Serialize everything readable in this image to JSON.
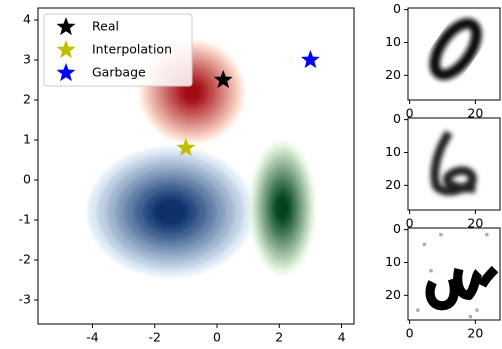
{
  "chart_data": [
    {
      "type": "kde-scatter",
      "xlim": [
        -5.75,
        4.4
      ],
      "ylim": [
        -3.6,
        4.3
      ],
      "xticks": [
        -4,
        -2,
        0,
        2,
        4
      ],
      "yticks": [
        -3,
        -2,
        -1,
        0,
        1,
        2,
        3,
        4
      ],
      "density": [
        {
          "x": -0.8,
          "y": 2.2,
          "sx": 0.72,
          "sy": 0.55,
          "colors": [
            "#fee0d2",
            "#a50f15"
          ]
        },
        {
          "x": -1.5,
          "y": -0.8,
          "sx": 1.15,
          "sy": 0.7,
          "colors": [
            "#deebf7",
            "#08306b"
          ]
        },
        {
          "x": 2.1,
          "y": -0.7,
          "sx": 0.45,
          "sy": 0.72,
          "colors": [
            "#e5f5e0",
            "#00441b"
          ]
        }
      ],
      "series": [
        {
          "name": "Real",
          "color": "#000000",
          "x": [
            0.2
          ],
          "values": [
            2.5
          ]
        },
        {
          "name": "Interpolation",
          "color": "#bfbf00",
          "x": [
            -1.0
          ],
          "values": [
            0.8
          ]
        },
        {
          "name": "Garbage",
          "color": "#0000ff",
          "x": [
            3.0
          ],
          "values": [
            3.0
          ]
        }
      ],
      "legend": "upper left"
    },
    {
      "type": "image",
      "xlim": [
        -0.5,
        27.5
      ],
      "ylim": [
        27.5,
        -0.5
      ],
      "xticks": [
        0,
        20
      ],
      "yticks": [
        0,
        10,
        20
      ]
    },
    {
      "type": "image",
      "xlim": [
        -0.5,
        27.5
      ],
      "ylim": [
        27.5,
        -0.5
      ],
      "xticks": [
        0,
        20
      ],
      "yticks": [
        0,
        10,
        20
      ]
    },
    {
      "type": "image",
      "xlim": [
        -0.5,
        27.5
      ],
      "ylim": [
        27.5,
        -0.5
      ],
      "xticks": [
        0,
        20
      ],
      "yticks": [
        0,
        10,
        20
      ]
    }
  ]
}
